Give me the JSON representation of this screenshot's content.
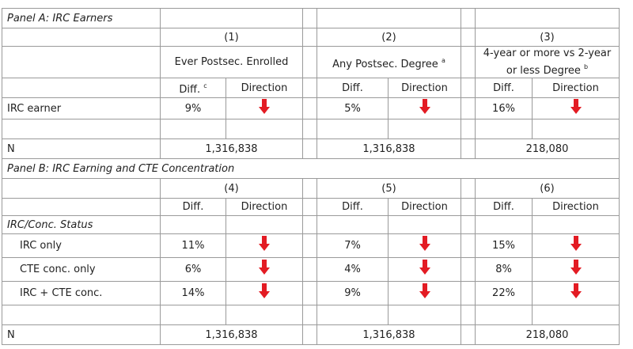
{
  "panel_a": {
    "title": "Panel A: IRC Earners",
    "columns": [
      {
        "number": "(1)",
        "header": "Ever Postsec. Enrolled",
        "diff": "Diff.",
        "diff_note": "c",
        "direction": "Direction"
      },
      {
        "number": "(2)",
        "header": "Any Postsec. Degree",
        "header_note": "a",
        "diff": "Diff.",
        "direction": "Direction"
      },
      {
        "number": "(3)",
        "header": "4-year or more vs 2-year or less Degree",
        "header_note": "b",
        "diff": "Diff.",
        "direction": "Direction"
      }
    ],
    "rows": [
      {
        "label": "IRC earner",
        "diffs": [
          "9%",
          "5%",
          "16%"
        ]
      }
    ],
    "n_label": "N",
    "n": [
      "1,316,838",
      "1,316,838",
      "218,080"
    ]
  },
  "panel_b": {
    "title": "Panel B: IRC Earning and CTE Concentration",
    "columns": [
      {
        "number": "(4)",
        "diff": "Diff.",
        "direction": "Direction"
      },
      {
        "number": "(5)",
        "diff": "Diff.",
        "direction": "Direction"
      },
      {
        "number": "(6)",
        "diff": "Diff.",
        "direction": "Direction"
      }
    ],
    "group_label": "IRC/Conc. Status",
    "rows": [
      {
        "label": "IRC only",
        "diffs": [
          "11%",
          "7%",
          "15%"
        ]
      },
      {
        "label": "CTE conc. only",
        "diffs": [
          "6%",
          "4%",
          "8%"
        ]
      },
      {
        "label": "IRC + CTE conc.",
        "diffs": [
          "14%",
          "9%",
          "22%"
        ]
      }
    ],
    "n_label": "N",
    "n": [
      "1,316,838",
      "1,316,838",
      "218,080"
    ]
  }
}
